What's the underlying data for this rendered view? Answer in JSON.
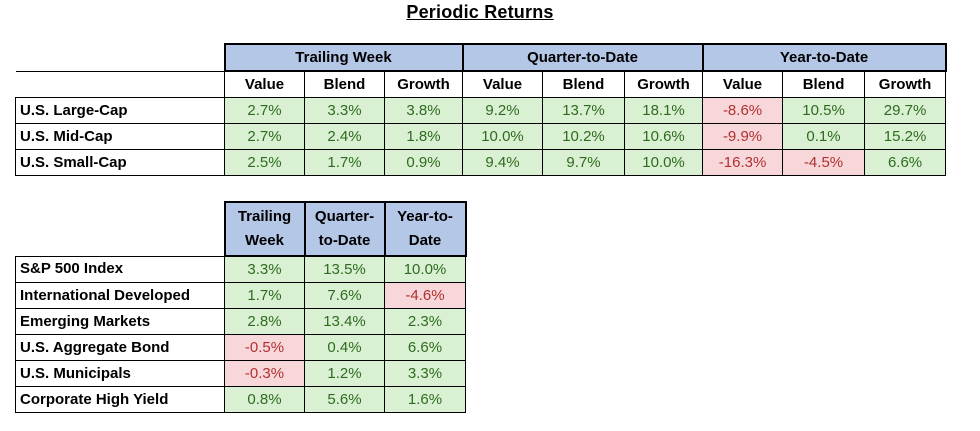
{
  "title": "Periodic Returns",
  "table1": {
    "groups": [
      "Trailing Week",
      "Quarter-to-Date",
      "Year-to-Date"
    ],
    "subheaders": [
      "Value",
      "Blend",
      "Growth",
      "Value",
      "Blend",
      "Growth",
      "Value",
      "Blend",
      "Growth"
    ],
    "rows": [
      {
        "label": "U.S. Large-Cap",
        "values": [
          "2.7%",
          "3.3%",
          "3.8%",
          "9.2%",
          "13.7%",
          "18.1%",
          "-8.6%",
          "10.5%",
          "29.7%"
        ]
      },
      {
        "label": "U.S. Mid-Cap",
        "values": [
          "2.7%",
          "2.4%",
          "1.8%",
          "10.0%",
          "10.2%",
          "10.6%",
          "-9.9%",
          "0.1%",
          "15.2%"
        ]
      },
      {
        "label": "U.S. Small-Cap",
        "values": [
          "2.5%",
          "1.7%",
          "0.9%",
          "9.4%",
          "9.7%",
          "10.0%",
          "-16.3%",
          "-4.5%",
          "6.6%"
        ]
      }
    ]
  },
  "table2": {
    "headers": [
      {
        "line1": "Trailing",
        "line2": "Week"
      },
      {
        "line1": "Quarter-",
        "line2": "to-Date"
      },
      {
        "line1": "Year-to-",
        "line2": "Date"
      }
    ],
    "rows": [
      {
        "label": "S&P 500 Index",
        "values": [
          "3.3%",
          "13.5%",
          "10.0%"
        ]
      },
      {
        "label": "International Developed",
        "values": [
          "1.7%",
          "7.6%",
          "-4.6%"
        ]
      },
      {
        "label": "Emerging Markets",
        "values": [
          "2.8%",
          "13.4%",
          "2.3%"
        ]
      },
      {
        "label": "U.S. Aggregate Bond",
        "values": [
          "-0.5%",
          "0.4%",
          "6.6%"
        ]
      },
      {
        "label": "U.S. Municipals",
        "values": [
          "-0.3%",
          "1.2%",
          "3.3%"
        ]
      },
      {
        "label": "Corporate High Yield",
        "values": [
          "0.8%",
          "5.6%",
          "1.6%"
        ]
      }
    ]
  },
  "colors": {
    "header_blue": "#b4c7e7",
    "positive_fill": "#d9f0d3",
    "positive_text": "#2e6b1f",
    "negative_fill": "#f8d7da",
    "negative_text": "#b03030"
  }
}
